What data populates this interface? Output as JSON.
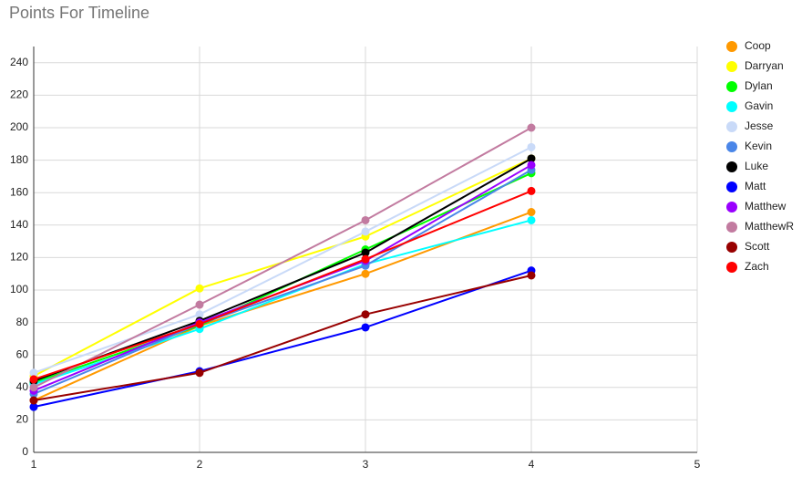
{
  "chart_data": {
    "type": "line",
    "title": "Points For Timeline",
    "x": [
      1,
      2,
      3,
      4
    ],
    "xlim": [
      1,
      5
    ],
    "xticks": [
      1,
      2,
      3,
      4,
      5
    ],
    "ylim": [
      0,
      250
    ],
    "yticks": [
      0,
      20,
      40,
      60,
      80,
      100,
      120,
      140,
      160,
      180,
      200,
      220,
      240
    ],
    "grid": true,
    "legend": "right",
    "series": [
      {
        "name": "Coop",
        "color": "#ff9900",
        "values": [
          32,
          78,
          110,
          148
        ]
      },
      {
        "name": "Darryan",
        "color": "#ffff00",
        "values": [
          47,
          101,
          133,
          181
        ]
      },
      {
        "name": "Dylan",
        "color": "#00ff00",
        "values": [
          43,
          78,
          125,
          172
        ]
      },
      {
        "name": "Gavin",
        "color": "#00ffff",
        "values": [
          42,
          76,
          116,
          143
        ]
      },
      {
        "name": "Jesse",
        "color": "#c9daf8",
        "values": [
          49,
          85,
          136,
          188
        ]
      },
      {
        "name": "Kevin",
        "color": "#4a86e8",
        "values": [
          36,
          79,
          115,
          174
        ]
      },
      {
        "name": "Luke",
        "color": "#000000",
        "values": [
          44,
          81,
          123,
          181
        ]
      },
      {
        "name": "Matt",
        "color": "#0000ff",
        "values": [
          28,
          50,
          77,
          112
        ]
      },
      {
        "name": "Matthew",
        "color": "#9900ff",
        "values": [
          38,
          80,
          118,
          177
        ]
      },
      {
        "name": "MatthewR",
        "color": "#c27ba0",
        "values": [
          40,
          91,
          143,
          200
        ]
      },
      {
        "name": "Scott",
        "color": "#980000",
        "values": [
          32,
          49,
          85,
          109
        ]
      },
      {
        "name": "Zach",
        "color": "#ff0000",
        "values": [
          45,
          79,
          119,
          161
        ]
      }
    ]
  }
}
